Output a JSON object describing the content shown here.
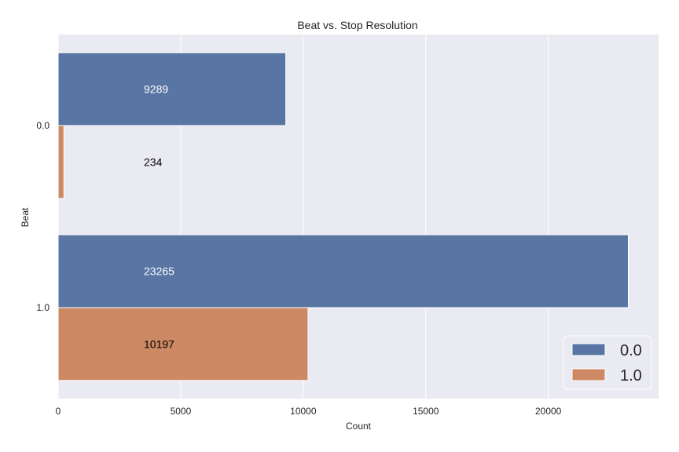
{
  "chart_data": {
    "type": "bar",
    "orientation": "horizontal",
    "title": "Beat vs. Stop Resolution",
    "xlabel": "Count",
    "ylabel": "Beat",
    "categories": [
      "0.0",
      "1.0"
    ],
    "series": [
      {
        "name": "0.0",
        "values": [
          9289,
          23265
        ],
        "color": "#5875a4",
        "label_color": "#ffffff"
      },
      {
        "name": "1.0",
        "values": [
          234,
          10197
        ],
        "color": "#cc8963",
        "label_color": "#000000"
      }
    ],
    "x_ticks": [
      0,
      5000,
      10000,
      15000,
      20000
    ],
    "xlim": [
      0,
      24500
    ],
    "grid": true,
    "legend": "lower-right",
    "background": "#eaeaf2"
  }
}
